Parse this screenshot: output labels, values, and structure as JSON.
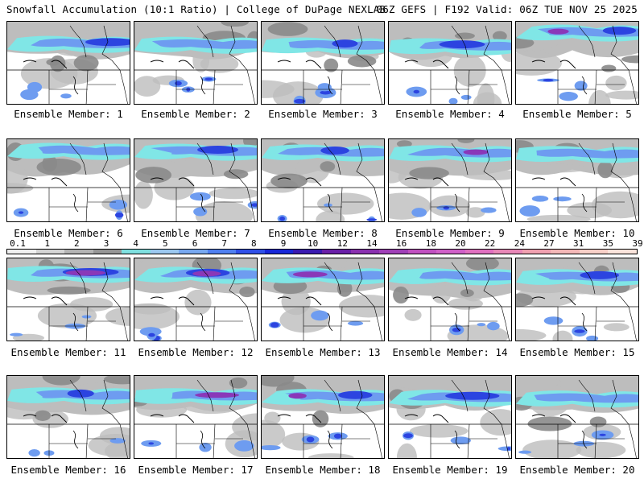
{
  "header": {
    "left": "Snowfall Accumulation (10:1 Ratio) | College of DuPage NEXLAB",
    "right": "06Z GEFS | F192 Valid: 06Z TUE NOV 25 2025"
  },
  "member_prefix": "Ensemble Member: ",
  "members": [
    1,
    2,
    3,
    4,
    5,
    6,
    7,
    8,
    9,
    10,
    11,
    12,
    13,
    14,
    15,
    16,
    17,
    18,
    19,
    20
  ],
  "colorbar": {
    "ticks": [
      "0.1",
      "1",
      "2",
      "3",
      "4",
      "5",
      "6",
      "7",
      "8",
      "9",
      "10",
      "12",
      "14",
      "16",
      "18",
      "20",
      "22",
      "24",
      "27",
      "31",
      "35",
      "39"
    ],
    "colors": [
      "#f0f0f0",
      "#d4d4d4",
      "#b4b4b4",
      "#969696",
      "#7fe0e0",
      "#9cc8f0",
      "#78a8f0",
      "#5080f0",
      "#3050e8",
      "#1828d8",
      "#3a1ab0",
      "#6a20a8",
      "#8a30b0",
      "#a040b8",
      "#c050c0",
      "#d060c8",
      "#e070c0",
      "#e888b8",
      "#f0a0b0",
      "#f4b8b8",
      "#f8d0c8",
      "#fbe4dc"
    ]
  },
  "colors": {
    "snow_light": "#bdbdbd",
    "snow_mid": "#8a8a8a",
    "snow_cyan": "#80e6e6",
    "snow_blue": "#6e9cf0",
    "snow_deep": "#2c44e0",
    "snow_purple": "#8a38b8"
  }
}
